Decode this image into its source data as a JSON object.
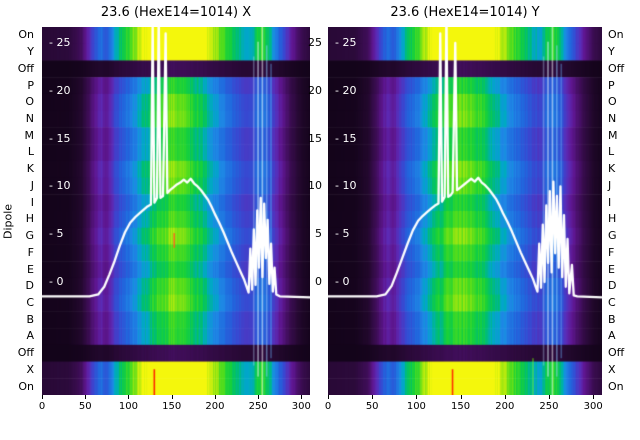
{
  "figure": {
    "ylabel": "Dipole",
    "background": "#ffffff",
    "line_color": "#ffffff"
  },
  "rows": [
    {
      "label": "On",
      "band": "bright"
    },
    {
      "label": "Y",
      "band": "bright"
    },
    {
      "label": "Off",
      "band": "off"
    },
    {
      "label": "P",
      "band": "normal"
    },
    {
      "label": "O",
      "band": "normal"
    },
    {
      "label": "N",
      "band": "normal"
    },
    {
      "label": "M",
      "band": "normal"
    },
    {
      "label": "L",
      "band": "normal"
    },
    {
      "label": "K",
      "band": "normal"
    },
    {
      "label": "J",
      "band": "normal"
    },
    {
      "label": "I",
      "band": "normal"
    },
    {
      "label": "H",
      "band": "normal"
    },
    {
      "label": "G",
      "band": "normal"
    },
    {
      "label": "F",
      "band": "normal"
    },
    {
      "label": "E",
      "band": "normal"
    },
    {
      "label": "D",
      "band": "normal"
    },
    {
      "label": "C",
      "band": "normal"
    },
    {
      "label": "B",
      "band": "normal"
    },
    {
      "label": "A",
      "band": "normal"
    },
    {
      "label": "Off",
      "band": "off"
    },
    {
      "label": "X",
      "band": "bright"
    },
    {
      "label": "On",
      "band": "bright"
    }
  ],
  "colormap": [
    [
      0.0,
      "#0d0212"
    ],
    [
      0.1,
      "#23082e"
    ],
    [
      0.2,
      "#3d0d55"
    ],
    [
      0.3,
      "#5e1690"
    ],
    [
      0.36,
      "#5c2ab5"
    ],
    [
      0.44,
      "#3a46d0"
    ],
    [
      0.52,
      "#2166dd"
    ],
    [
      0.6,
      "#1e88e5"
    ],
    [
      0.66,
      "#00a8c8"
    ],
    [
      0.72,
      "#00bf6f"
    ],
    [
      0.78,
      "#16d03c"
    ],
    [
      0.85,
      "#52dd1c"
    ],
    [
      0.92,
      "#a8e80f"
    ],
    [
      1.0,
      "#f4f70c"
    ]
  ],
  "chart_data": [
    {
      "type": "heatmap",
      "title": "23.6 (HexE14=1014) X",
      "x_range": [
        0,
        310
      ],
      "x_ticks": [
        0,
        50,
        100,
        150,
        200,
        250,
        300
      ],
      "y_ticks_inside": [
        25,
        20,
        15,
        10,
        5,
        0
      ],
      "profile": [
        [
          0,
          0.03
        ],
        [
          30,
          0.04
        ],
        [
          45,
          0.1
        ],
        [
          55,
          0.22
        ],
        [
          62,
          0.3
        ],
        [
          68,
          0.34
        ],
        [
          74,
          0.3
        ],
        [
          80,
          0.38
        ],
        [
          88,
          0.46
        ],
        [
          96,
          0.52
        ],
        [
          104,
          0.58
        ],
        [
          112,
          0.64
        ],
        [
          120,
          0.7
        ],
        [
          128,
          0.76
        ],
        [
          136,
          0.8
        ],
        [
          144,
          0.83
        ],
        [
          152,
          0.85
        ],
        [
          160,
          0.83
        ],
        [
          168,
          0.8
        ],
        [
          176,
          0.76
        ],
        [
          184,
          0.72
        ],
        [
          192,
          0.67
        ],
        [
          200,
          0.62
        ],
        [
          208,
          0.57
        ],
        [
          216,
          0.52
        ],
        [
          224,
          0.48
        ],
        [
          232,
          0.44
        ],
        [
          240,
          0.42
        ],
        [
          248,
          0.5
        ],
        [
          254,
          0.55
        ],
        [
          260,
          0.5
        ],
        [
          266,
          0.42
        ],
        [
          272,
          0.34
        ],
        [
          280,
          0.26
        ],
        [
          290,
          0.16
        ],
        [
          300,
          0.08
        ],
        [
          310,
          0.04
        ]
      ],
      "vlines": [
        {
          "x": 244,
          "color": "#bbdefb",
          "alpha": 0.35,
          "y0": 0.08,
          "y1": 0.92
        },
        {
          "x": 249,
          "color": "#e3f2fd",
          "alpha": 0.55,
          "y0": 0.04,
          "y1": 0.95
        },
        {
          "x": 254,
          "color": "#ffffff",
          "alpha": 0.5,
          "y0": 0.0,
          "y1": 1.0
        },
        {
          "x": 259,
          "color": "#90caf9",
          "alpha": 0.5,
          "y0": 0.05,
          "y1": 0.95
        },
        {
          "x": 264,
          "color": "#64b5f6",
          "alpha": 0.4,
          "y0": 0.1,
          "y1": 0.9
        },
        {
          "x": 129,
          "color": "#ff1100",
          "alpha": 0.9,
          "y0": 0.93,
          "y1": 1.0
        },
        {
          "x": 152,
          "color": "#ff5722",
          "alpha": 0.8,
          "y0": 0.56,
          "y1": 0.6
        }
      ],
      "line": [
        [
          0,
          -1.5
        ],
        [
          55,
          -1.5
        ],
        [
          65,
          -1.3
        ],
        [
          72,
          -0.5
        ],
        [
          78,
          0.8
        ],
        [
          84,
          2.2
        ],
        [
          90,
          3.8
        ],
        [
          96,
          5.2
        ],
        [
          102,
          6.2
        ],
        [
          108,
          6.8
        ],
        [
          113,
          7.2
        ],
        [
          118,
          7.6
        ],
        [
          122,
          7.9
        ],
        [
          126,
          8.1
        ],
        [
          128,
          27
        ],
        [
          130,
          8.3
        ],
        [
          133,
          8.8
        ],
        [
          135,
          28
        ],
        [
          137,
          8.8
        ],
        [
          140,
          9.0
        ],
        [
          143,
          26
        ],
        [
          145,
          9.3
        ],
        [
          148,
          9.6
        ],
        [
          152,
          9.9
        ],
        [
          156,
          10.2
        ],
        [
          160,
          10.4
        ],
        [
          164,
          10.7
        ],
        [
          168,
          10.4
        ],
        [
          172,
          10.8
        ],
        [
          176,
          10.3
        ],
        [
          180,
          10.0
        ],
        [
          184,
          9.6
        ],
        [
          188,
          9.1
        ],
        [
          192,
          8.6
        ],
        [
          196,
          7.9
        ],
        [
          200,
          7.1
        ],
        [
          205,
          6.2
        ],
        [
          210,
          5.2
        ],
        [
          215,
          4.1
        ],
        [
          220,
          3.0
        ],
        [
          225,
          2.0
        ],
        [
          230,
          1.0
        ],
        [
          234,
          0.2
        ],
        [
          237,
          -0.6
        ],
        [
          239,
          -1.1
        ],
        [
          241,
          3.5
        ],
        [
          243,
          -0.8
        ],
        [
          245,
          5.5
        ],
        [
          247,
          -0.3
        ],
        [
          249,
          7.5
        ],
        [
          251,
          1.5
        ],
        [
          253,
          8.8
        ],
        [
          255,
          0.5
        ],
        [
          257,
          8.2
        ],
        [
          259,
          2.5
        ],
        [
          261,
          6.5
        ],
        [
          263,
          -0.2
        ],
        [
          265,
          4.0
        ],
        [
          267,
          -1.0
        ],
        [
          269,
          1.5
        ],
        [
          271,
          -1.3
        ],
        [
          275,
          -1.5
        ],
        [
          310,
          -1.6
        ]
      ]
    },
    {
      "type": "heatmap",
      "title": "23.6 (HexE14=1014) Y",
      "x_range": [
        0,
        310
      ],
      "x_ticks": [
        0,
        50,
        100,
        150,
        200,
        250,
        300
      ],
      "y_ticks_inside": [
        25,
        20,
        15,
        10,
        5,
        0
      ],
      "y_ticks_outside": [
        25,
        20,
        15,
        10,
        5,
        0
      ],
      "profile": [
        [
          0,
          0.03
        ],
        [
          30,
          0.04
        ],
        [
          45,
          0.1
        ],
        [
          55,
          0.22
        ],
        [
          62,
          0.3
        ],
        [
          68,
          0.34
        ],
        [
          74,
          0.3
        ],
        [
          80,
          0.38
        ],
        [
          88,
          0.46
        ],
        [
          96,
          0.52
        ],
        [
          104,
          0.58
        ],
        [
          112,
          0.64
        ],
        [
          120,
          0.7
        ],
        [
          128,
          0.76
        ],
        [
          136,
          0.8
        ],
        [
          144,
          0.83
        ],
        [
          152,
          0.85
        ],
        [
          160,
          0.83
        ],
        [
          168,
          0.8
        ],
        [
          176,
          0.76
        ],
        [
          184,
          0.72
        ],
        [
          192,
          0.67
        ],
        [
          200,
          0.62
        ],
        [
          208,
          0.57
        ],
        [
          216,
          0.52
        ],
        [
          224,
          0.48
        ],
        [
          232,
          0.44
        ],
        [
          240,
          0.42
        ],
        [
          248,
          0.5
        ],
        [
          254,
          0.55
        ],
        [
          260,
          0.5
        ],
        [
          266,
          0.42
        ],
        [
          272,
          0.34
        ],
        [
          280,
          0.26
        ],
        [
          290,
          0.16
        ],
        [
          300,
          0.08
        ],
        [
          310,
          0.04
        ]
      ],
      "vlines": [
        {
          "x": 243,
          "color": "#bbdefb",
          "alpha": 0.35,
          "y0": 0.08,
          "y1": 0.92
        },
        {
          "x": 248,
          "color": "#e3f2fd",
          "alpha": 0.55,
          "y0": 0.04,
          "y1": 0.95
        },
        {
          "x": 253,
          "color": "#ffffff",
          "alpha": 0.5,
          "y0": 0.0,
          "y1": 1.0
        },
        {
          "x": 258,
          "color": "#90caf9",
          "alpha": 0.5,
          "y0": 0.05,
          "y1": 0.95
        },
        {
          "x": 263,
          "color": "#64b5f6",
          "alpha": 0.4,
          "y0": 0.1,
          "y1": 0.9
        },
        {
          "x": 140,
          "color": "#ff1100",
          "alpha": 0.85,
          "y0": 0.93,
          "y1": 1.0
        },
        {
          "x": 231,
          "color": "#76ff03",
          "alpha": 0.5,
          "y0": 0.9,
          "y1": 1.0
        }
      ],
      "line": [
        [
          0,
          -1.5
        ],
        [
          55,
          -1.5
        ],
        [
          65,
          -1.3
        ],
        [
          72,
          -0.4
        ],
        [
          78,
          1.0
        ],
        [
          84,
          2.5
        ],
        [
          90,
          4.0
        ],
        [
          96,
          5.4
        ],
        [
          102,
          6.4
        ],
        [
          107,
          6.9
        ],
        [
          112,
          7.3
        ],
        [
          117,
          7.7
        ],
        [
          121,
          8.0
        ],
        [
          125,
          8.2
        ],
        [
          127,
          26
        ],
        [
          129,
          8.4
        ],
        [
          132,
          8.9
        ],
        [
          134,
          28
        ],
        [
          136,
          8.9
        ],
        [
          139,
          9.1
        ],
        [
          141,
          9.4
        ],
        [
          144,
          25
        ],
        [
          146,
          9.6
        ],
        [
          150,
          9.9
        ],
        [
          154,
          10.2
        ],
        [
          158,
          10.5
        ],
        [
          162,
          10.8
        ],
        [
          166,
          10.5
        ],
        [
          170,
          10.9
        ],
        [
          174,
          10.4
        ],
        [
          178,
          10.1
        ],
        [
          182,
          9.7
        ],
        [
          186,
          9.2
        ],
        [
          190,
          8.7
        ],
        [
          194,
          8.0
        ],
        [
          198,
          7.2
        ],
        [
          203,
          6.3
        ],
        [
          208,
          5.3
        ],
        [
          213,
          4.2
        ],
        [
          218,
          3.1
        ],
        [
          223,
          2.1
        ],
        [
          228,
          1.1
        ],
        [
          232,
          0.3
        ],
        [
          235,
          -0.5
        ],
        [
          237,
          -1.0
        ],
        [
          239,
          4.0
        ],
        [
          241,
          -0.6
        ],
        [
          243,
          6.0
        ],
        [
          245,
          0.0
        ],
        [
          247,
          8.0
        ],
        [
          249,
          2.0
        ],
        [
          251,
          9.5
        ],
        [
          253,
          1.0
        ],
        [
          255,
          10.5
        ],
        [
          257,
          3.0
        ],
        [
          259,
          9.0
        ],
        [
          261,
          1.5
        ],
        [
          263,
          10.0
        ],
        [
          265,
          0.5
        ],
        [
          267,
          7.0
        ],
        [
          269,
          -0.5
        ],
        [
          271,
          4.5
        ],
        [
          273,
          -1.2
        ],
        [
          276,
          1.8
        ],
        [
          278,
          -1.4
        ],
        [
          282,
          -1.5
        ],
        [
          310,
          -1.6
        ]
      ]
    }
  ]
}
